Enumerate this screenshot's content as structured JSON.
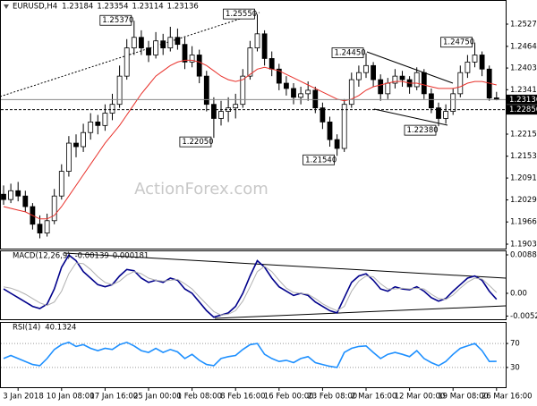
{
  "chart_data": [
    {
      "type": "candlestick",
      "title": "EURUSD,H4",
      "header_values": [
        1.23184,
        1.23354,
        1.23114,
        1.23136
      ],
      "watermark": "ActionForex.com",
      "categories": [
        null,
        null,
        "3 Jan 2018",
        null,
        null,
        null,
        null,
        null,
        "10 Jan 08:00",
        null,
        null,
        null,
        null,
        null,
        "17 Jan 16:00",
        null,
        null,
        null,
        null,
        null,
        "25 Jan 00:00",
        null,
        null,
        null,
        null,
        null,
        "1 Feb 08:00",
        null,
        null,
        null,
        null,
        null,
        "8 Feb 16:00",
        null,
        null,
        null,
        null,
        null,
        "16 Feb 00:00",
        null,
        null,
        null,
        null,
        null,
        "23 Feb 08:00",
        null,
        null,
        null,
        null,
        null,
        "2 Mar 16:00",
        null,
        null,
        null,
        null,
        null,
        "12 Mar 00:00",
        null,
        null,
        null,
        null,
        null,
        "19 Mar 08:00",
        null,
        null,
        null,
        null,
        null,
        "26 Mar 16:00"
      ],
      "open": [
        1.2045,
        1.203,
        1.2055,
        1.204,
        1.201,
        1.196,
        1.1935,
        1.197,
        1.204,
        1.211,
        1.219,
        1.218,
        1.222,
        1.225,
        1.224,
        1.2275,
        1.23,
        1.238,
        1.246,
        1.249,
        1.246,
        1.244,
        1.248,
        1.246,
        1.249,
        1.247,
        1.242,
        1.244,
        1.238,
        1.23,
        1.226,
        1.228,
        1.229,
        1.23,
        1.238,
        1.246,
        1.25,
        1.243,
        1.24,
        1.236,
        1.2345,
        1.232,
        1.233,
        1.234,
        1.229,
        1.225,
        1.22,
        1.2175,
        1.23,
        1.237,
        1.239,
        1.241,
        1.237,
        1.233,
        1.236,
        1.238,
        1.237,
        1.235,
        1.239,
        1.233,
        1.229,
        1.226,
        1.228,
        1.233,
        1.239,
        1.242,
        1.244,
        1.24,
        1.23184
      ],
      "high": [
        1.207,
        1.2075,
        1.208,
        1.2055,
        1.202,
        1.1985,
        1.199,
        1.206,
        1.213,
        1.221,
        1.2215,
        1.2245,
        1.2275,
        1.227,
        1.23,
        1.233,
        1.241,
        1.2485,
        1.2537,
        1.251,
        1.248,
        1.2505,
        1.25,
        1.252,
        1.2515,
        1.249,
        1.2465,
        1.2455,
        1.2395,
        1.232,
        1.231,
        1.232,
        1.233,
        1.24,
        1.248,
        1.2555,
        1.251,
        1.245,
        1.2415,
        1.238,
        1.236,
        1.235,
        1.2365,
        1.235,
        1.2305,
        1.2265,
        1.2215,
        1.2315,
        1.239,
        1.241,
        1.2445,
        1.242,
        1.2385,
        1.2375,
        1.24,
        1.2395,
        1.238,
        1.2405,
        1.24,
        1.2345,
        1.2305,
        1.23,
        1.2345,
        1.241,
        1.244,
        1.2475,
        1.245,
        1.241,
        1.23354
      ],
      "low": [
        1.2015,
        1.202,
        1.2025,
        1.1995,
        1.1945,
        1.192,
        1.1925,
        1.196,
        1.203,
        1.2095,
        1.215,
        1.2165,
        1.22,
        1.2215,
        1.2225,
        1.2255,
        1.229,
        1.237,
        1.244,
        1.244,
        1.242,
        1.243,
        1.244,
        1.245,
        1.2455,
        1.24,
        1.2405,
        1.236,
        1.228,
        1.2205,
        1.224,
        1.225,
        1.226,
        1.229,
        1.237,
        1.245,
        1.241,
        1.238,
        1.234,
        1.2325,
        1.23,
        1.23,
        1.231,
        1.2275,
        1.223,
        1.218,
        1.2154,
        1.2165,
        1.229,
        1.235,
        1.2375,
        1.235,
        1.231,
        1.2315,
        1.2345,
        1.235,
        1.233,
        1.234,
        1.2315,
        1.2275,
        1.2238,
        1.2245,
        1.227,
        1.232,
        1.2375,
        1.2405,
        1.238,
        1.231,
        1.23114
      ],
      "close": [
        1.203,
        1.2055,
        1.204,
        1.201,
        1.196,
        1.1935,
        1.197,
        1.204,
        1.211,
        1.219,
        1.218,
        1.222,
        1.225,
        1.224,
        1.2275,
        1.23,
        1.238,
        1.246,
        1.249,
        1.246,
        1.244,
        1.248,
        1.246,
        1.249,
        1.247,
        1.242,
        1.244,
        1.238,
        1.23,
        1.226,
        1.228,
        1.229,
        1.23,
        1.238,
        1.246,
        1.25,
        1.243,
        1.24,
        1.236,
        1.2345,
        1.232,
        1.233,
        1.234,
        1.229,
        1.225,
        1.22,
        1.2175,
        1.23,
        1.237,
        1.239,
        1.241,
        1.237,
        1.233,
        1.236,
        1.238,
        1.237,
        1.235,
        1.239,
        1.233,
        1.229,
        1.226,
        1.228,
        1.233,
        1.239,
        1.242,
        1.244,
        1.24,
        1.2318,
        1.23136
      ],
      "ma_values": [
        1.201,
        1.2005,
        1.2,
        1.1995,
        1.1985,
        1.1975,
        1.1975,
        1.1985,
        1.201,
        1.204,
        1.207,
        1.21,
        1.213,
        1.216,
        1.219,
        1.2215,
        1.224,
        1.227,
        1.23,
        1.233,
        1.2355,
        1.238,
        1.2395,
        1.241,
        1.242,
        1.2425,
        1.2425,
        1.242,
        1.241,
        1.2395,
        1.238,
        1.237,
        1.2365,
        1.237,
        1.2385,
        1.24,
        1.2405,
        1.24,
        1.2395,
        1.2385,
        1.2375,
        1.2365,
        1.2355,
        1.2345,
        1.2335,
        1.2325,
        1.2315,
        1.231,
        1.2315,
        1.2325,
        1.234,
        1.235,
        1.2355,
        1.236,
        1.2365,
        1.2365,
        1.236,
        1.236,
        1.2355,
        1.235,
        1.2345,
        1.2345,
        1.2345,
        1.235,
        1.236,
        1.2365,
        1.2365,
        1.236,
        1.2355
      ],
      "ma_color": "#e8302a",
      "up_color": "#ffffff",
      "down_color": "#000000",
      "wick_color": "#000000",
      "annotations": [
        {
          "value": 1.2537,
          "label": "1.25370"
        },
        {
          "value": 1.2555,
          "label": "1.25550"
        },
        {
          "value": 1.2205,
          "label": "1.22050"
        },
        {
          "value": 1.2154,
          "label": "1.21540"
        },
        {
          "value": 1.2445,
          "label": "1.24450"
        },
        {
          "value": 1.2238,
          "label": "1.22380"
        },
        {
          "value": 1.2475,
          "label": "1.24750"
        }
      ],
      "levels": [
        {
          "value": 1.2285,
          "label": "1.22850",
          "style": "dashed"
        },
        {
          "value": 1.23136,
          "label": "1.23136",
          "style": "solid"
        }
      ],
      "ylim": [
        1.18934,
        1.25858
      ],
      "yticks": [
        1.25275,
        1.24645,
        {
          "value": 1.2403,
          "label": "1.24030"
        },
        1.23415,
        1.22155,
        {
          "value": 1.2153,
          "label": "1.21530"
        },
        {
          "value": 1.2091,
          "label": "1.20910"
        },
        {
          "value": 1.2029,
          "label": "1.20290"
        },
        1.19665,
        1.19035
      ]
    },
    {
      "type": "line",
      "title": "MACD(12,26,9)",
      "header_values": [
        -0.00139,
        0.000181
      ],
      "series": [
        {
          "color": "#00008b",
          "values": [
            0.001,
            0.0,
            -0.001,
            -0.002,
            -0.003,
            -0.0035,
            -0.0025,
            0.001,
            0.006,
            0.0088,
            0.0075,
            0.005,
            0.0035,
            0.002,
            0.0015,
            0.002,
            0.004,
            0.0055,
            0.0052,
            0.0035,
            0.0025,
            0.003,
            0.0025,
            0.0035,
            0.003,
            0.001,
            0.0,
            -0.002,
            -0.004,
            -0.0055,
            -0.005,
            -0.0045,
            -0.003,
            0.0,
            0.004,
            0.0075,
            0.006,
            0.0035,
            0.0015,
            0.0005,
            -0.0005,
            0.0,
            -0.0005,
            -0.002,
            -0.003,
            -0.004,
            -0.0045,
            -0.001,
            0.0025,
            0.004,
            0.0045,
            0.003,
            0.001,
            0.0005,
            0.0015,
            0.001,
            0.0008,
            0.0015,
            0.0005,
            -0.001,
            -0.0018,
            -0.0012,
            0.0005,
            0.002,
            0.0035,
            0.004,
            0.003,
            0.0005,
            -0.00139
          ]
        },
        {
          "color": "#b0b0b0",
          "values": [
            0.0015,
            0.0012,
            0.0006,
            -0.0002,
            -0.0012,
            -0.0022,
            -0.0028,
            -0.002,
            0.0005,
            0.0045,
            0.007,
            0.0068,
            0.0055,
            0.0038,
            0.0025,
            0.002,
            0.0028,
            0.0042,
            0.005,
            0.0045,
            0.0035,
            0.003,
            0.0028,
            0.003,
            0.0032,
            0.0022,
            0.001,
            -0.0008,
            -0.0025,
            -0.0042,
            -0.005,
            -0.0048,
            -0.004,
            -0.0018,
            0.0015,
            0.005,
            0.0062,
            0.005,
            0.003,
            0.0012,
            0.0002,
            0.0,
            -0.0002,
            -0.0012,
            -0.0024,
            -0.0033,
            -0.004,
            -0.003,
            0.0005,
            0.0028,
            0.004,
            0.0038,
            0.0022,
            0.001,
            0.001,
            0.0012,
            0.001,
            0.0012,
            0.001,
            -0.0002,
            -0.0012,
            -0.0014,
            -0.0004,
            0.0012,
            0.0026,
            0.0035,
            0.0033,
            0.0018,
            0.000181
          ]
        }
      ],
      "ylim": [
        -0.00597,
        0.00967
      ],
      "yticks": [
        {
          "value": 0.00885,
          "label": "0.008850"
        },
        {
          "value": 0,
          "label": "0.00"
        },
        -0.005233
      ]
    },
    {
      "type": "line",
      "title": "RSI(14)",
      "header_values": [
        40.1324
      ],
      "series": [
        {
          "color": "#1e90ff",
          "values": [
            45,
            50,
            45,
            40,
            35,
            33,
            45,
            60,
            68,
            72,
            65,
            68,
            62,
            58,
            62,
            60,
            68,
            72,
            66,
            58,
            55,
            62,
            55,
            60,
            56,
            45,
            52,
            42,
            35,
            33,
            45,
            48,
            50,
            60,
            68,
            70,
            52,
            45,
            40,
            42,
            38,
            45,
            48,
            38,
            35,
            32,
            30,
            55,
            62,
            65,
            66,
            55,
            45,
            52,
            55,
            52,
            48,
            58,
            45,
            38,
            33,
            40,
            52,
            62,
            66,
            70,
            58,
            40,
            40.1324
          ]
        }
      ],
      "ylim": [
        0,
        100
      ],
      "yticks": [
        70,
        30
      ],
      "grid": true
    }
  ]
}
